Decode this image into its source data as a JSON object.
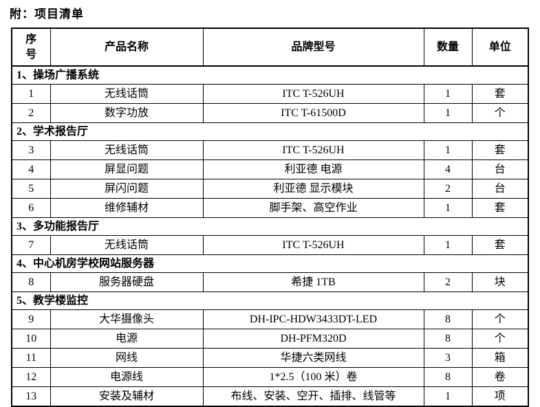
{
  "title": "附：项目清单",
  "table": {
    "headers": [
      "序号",
      "产品名称",
      "品牌型号",
      "数量",
      "单位"
    ],
    "sections": [
      {
        "label": "1、操场广播系统",
        "rows": [
          {
            "no": "1",
            "name": "无线话筒",
            "model": "ITC T-526UH",
            "qty": "1",
            "unit": "套"
          },
          {
            "no": "2",
            "name": "数字功放",
            "model": "ITC T-61500D",
            "qty": "1",
            "unit": "个"
          }
        ]
      },
      {
        "label": "2、学术报告厅",
        "rows": [
          {
            "no": "3",
            "name": "无线话筒",
            "model": "ITC T-526UH",
            "qty": "1",
            "unit": "套"
          },
          {
            "no": "4",
            "name": "屏显问题",
            "model": "利亚德 电源",
            "qty": "4",
            "unit": "台"
          },
          {
            "no": "5",
            "name": "屏闪问题",
            "model": "利亚德 显示模块",
            "qty": "2",
            "unit": "台"
          },
          {
            "no": "6",
            "name": "维修辅材",
            "model": "脚手架、高空作业",
            "qty": "1",
            "unit": "套"
          }
        ]
      },
      {
        "label": "3、多功能报告厅",
        "rows": [
          {
            "no": "7",
            "name": "无线话筒",
            "model": "ITC T-526UH",
            "qty": "1",
            "unit": "套"
          }
        ]
      },
      {
        "label": "4、中心机房学校网站服务器",
        "rows": [
          {
            "no": "8",
            "name": "服务器硬盘",
            "model": "希捷 1TB",
            "qty": "2",
            "unit": "块"
          }
        ]
      },
      {
        "label": "5、教学楼监控",
        "rows": [
          {
            "no": "9",
            "name": "大华摄像头",
            "model": "DH-IPC-HDW3433DT-LED",
            "qty": "8",
            "unit": "个"
          },
          {
            "no": "10",
            "name": "电源",
            "model": "DH-PFM320D",
            "qty": "8",
            "unit": "个"
          },
          {
            "no": "11",
            "name": "网线",
            "model": "华捷六类网线",
            "qty": "3",
            "unit": "箱"
          },
          {
            "no": "12",
            "name": "电源线",
            "model": "1*2.5（100 米）卷",
            "qty": "8",
            "unit": "卷"
          },
          {
            "no": "13",
            "name": "安装及辅材",
            "model": "布线、安装、空开、插排、线管等",
            "qty": "1",
            "unit": "项"
          }
        ]
      }
    ]
  }
}
